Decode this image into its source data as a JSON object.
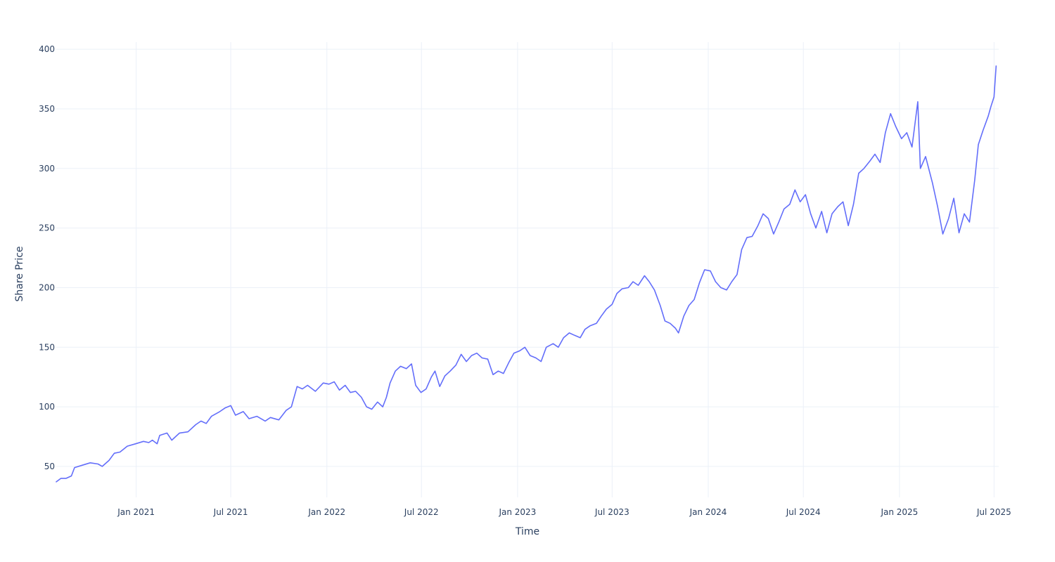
{
  "chart_data": {
    "type": "line",
    "title": "",
    "xlabel": "Time",
    "ylabel": "Share Price",
    "xlim": [
      "2020-08-01",
      "2025-07-10"
    ],
    "ylim": [
      24,
      406
    ],
    "grid": true,
    "legend": "none",
    "x_ticks": [
      {
        "date": "2021-01-01",
        "label": "Jan 2021"
      },
      {
        "date": "2021-07-01",
        "label": "Jul 2021"
      },
      {
        "date": "2022-01-01",
        "label": "Jan 2022"
      },
      {
        "date": "2022-07-01",
        "label": "Jul 2022"
      },
      {
        "date": "2023-01-01",
        "label": "Jan 2023"
      },
      {
        "date": "2023-07-01",
        "label": "Jul 2023"
      },
      {
        "date": "2024-01-01",
        "label": "Jan 2024"
      },
      {
        "date": "2024-07-01",
        "label": "Jul 2024"
      },
      {
        "date": "2025-01-01",
        "label": "Jan 2025"
      },
      {
        "date": "2025-07-01",
        "label": "Jul 2025"
      }
    ],
    "y_ticks": [
      {
        "value": 50,
        "label": "50"
      },
      {
        "value": 100,
        "label": "100"
      },
      {
        "value": 150,
        "label": "150"
      },
      {
        "value": 200,
        "label": "200"
      },
      {
        "value": 250,
        "label": "250"
      },
      {
        "value": 300,
        "label": "300"
      },
      {
        "value": 350,
        "label": "350"
      },
      {
        "value": 400,
        "label": "400"
      }
    ],
    "series": [
      {
        "color": "#636efa",
        "points": [
          [
            "2020-08-01",
            37
          ],
          [
            "2020-08-10",
            40
          ],
          [
            "2020-08-20",
            40
          ],
          [
            "2020-08-30",
            42
          ],
          [
            "2020-09-05",
            49
          ],
          [
            "2020-09-20",
            51
          ],
          [
            "2020-10-05",
            53
          ],
          [
            "2020-10-20",
            52
          ],
          [
            "2020-10-28",
            50
          ],
          [
            "2020-11-10",
            55
          ],
          [
            "2020-11-20",
            61
          ],
          [
            "2020-12-01",
            62
          ],
          [
            "2020-12-15",
            67
          ],
          [
            "2020-12-31",
            69
          ],
          [
            "2021-01-15",
            71
          ],
          [
            "2021-01-25",
            70
          ],
          [
            "2021-02-01",
            72
          ],
          [
            "2021-02-10",
            69
          ],
          [
            "2021-02-15",
            76
          ],
          [
            "2021-03-01",
            78
          ],
          [
            "2021-03-10",
            72
          ],
          [
            "2021-03-25",
            78
          ],
          [
            "2021-04-10",
            79
          ],
          [
            "2021-04-25",
            85
          ],
          [
            "2021-05-05",
            88
          ],
          [
            "2021-05-15",
            86
          ],
          [
            "2021-05-25",
            92
          ],
          [
            "2021-06-10",
            96
          ],
          [
            "2021-06-20",
            99
          ],
          [
            "2021-07-01",
            101
          ],
          [
            "2021-07-10",
            93
          ],
          [
            "2021-07-25",
            96
          ],
          [
            "2021-08-05",
            90
          ],
          [
            "2021-08-20",
            92
          ],
          [
            "2021-09-05",
            88
          ],
          [
            "2021-09-15",
            91
          ],
          [
            "2021-10-01",
            89
          ],
          [
            "2021-10-15",
            97
          ],
          [
            "2021-10-25",
            100
          ],
          [
            "2021-11-05",
            117
          ],
          [
            "2021-11-15",
            115
          ],
          [
            "2021-11-25",
            118
          ],
          [
            "2021-12-10",
            113
          ],
          [
            "2021-12-25",
            120
          ],
          [
            "2022-01-05",
            119
          ],
          [
            "2022-01-15",
            121
          ],
          [
            "2022-01-25",
            114
          ],
          [
            "2022-02-05",
            118
          ],
          [
            "2022-02-15",
            112
          ],
          [
            "2022-02-25",
            113
          ],
          [
            "2022-03-08",
            108
          ],
          [
            "2022-03-18",
            100
          ],
          [
            "2022-03-28",
            98
          ],
          [
            "2022-04-08",
            104
          ],
          [
            "2022-04-18",
            100
          ],
          [
            "2022-04-25",
            108
          ],
          [
            "2022-05-02",
            120
          ],
          [
            "2022-05-12",
            130
          ],
          [
            "2022-05-22",
            134
          ],
          [
            "2022-06-02",
            132
          ],
          [
            "2022-06-12",
            136
          ],
          [
            "2022-06-20",
            118
          ],
          [
            "2022-06-30",
            112
          ],
          [
            "2022-07-10",
            115
          ],
          [
            "2022-07-20",
            125
          ],
          [
            "2022-07-27",
            130
          ],
          [
            "2022-08-05",
            117
          ],
          [
            "2022-08-15",
            126
          ],
          [
            "2022-08-25",
            130
          ],
          [
            "2022-09-05",
            135
          ],
          [
            "2022-09-15",
            144
          ],
          [
            "2022-09-25",
            138
          ],
          [
            "2022-10-05",
            143
          ],
          [
            "2022-10-15",
            145
          ],
          [
            "2022-10-25",
            141
          ],
          [
            "2022-11-05",
            140
          ],
          [
            "2022-11-15",
            127
          ],
          [
            "2022-11-25",
            130
          ],
          [
            "2022-12-05",
            128
          ],
          [
            "2022-12-15",
            137
          ],
          [
            "2022-12-25",
            145
          ],
          [
            "2023-01-05",
            147
          ],
          [
            "2023-01-15",
            150
          ],
          [
            "2023-01-25",
            143
          ],
          [
            "2023-02-05",
            141
          ],
          [
            "2023-02-15",
            138
          ],
          [
            "2023-02-25",
            150
          ],
          [
            "2023-03-10",
            153
          ],
          [
            "2023-03-20",
            150
          ],
          [
            "2023-03-30",
            158
          ],
          [
            "2023-04-10",
            162
          ],
          [
            "2023-04-20",
            160
          ],
          [
            "2023-05-01",
            158
          ],
          [
            "2023-05-10",
            165
          ],
          [
            "2023-05-20",
            168
          ],
          [
            "2023-06-01",
            170
          ],
          [
            "2023-06-10",
            176
          ],
          [
            "2023-06-20",
            182
          ],
          [
            "2023-07-01",
            186
          ],
          [
            "2023-07-10",
            195
          ],
          [
            "2023-07-20",
            199
          ],
          [
            "2023-08-01",
            200
          ],
          [
            "2023-08-10",
            205
          ],
          [
            "2023-08-20",
            202
          ],
          [
            "2023-09-01",
            210
          ],
          [
            "2023-09-10",
            205
          ],
          [
            "2023-09-20",
            198
          ],
          [
            "2023-10-01",
            185
          ],
          [
            "2023-10-10",
            172
          ],
          [
            "2023-10-20",
            170
          ],
          [
            "2023-10-30",
            166
          ],
          [
            "2023-11-05",
            162
          ],
          [
            "2023-11-15",
            176
          ],
          [
            "2023-11-25",
            185
          ],
          [
            "2023-12-05",
            190
          ],
          [
            "2023-12-15",
            204
          ],
          [
            "2023-12-25",
            215
          ],
          [
            "2024-01-05",
            214
          ],
          [
            "2024-01-15",
            205
          ],
          [
            "2024-01-25",
            200
          ],
          [
            "2024-02-05",
            198
          ],
          [
            "2024-02-15",
            205
          ],
          [
            "2024-02-25",
            211
          ],
          [
            "2024-03-05",
            232
          ],
          [
            "2024-03-15",
            242
          ],
          [
            "2024-03-25",
            243
          ],
          [
            "2024-04-05",
            252
          ],
          [
            "2024-04-15",
            262
          ],
          [
            "2024-04-25",
            258
          ],
          [
            "2024-05-05",
            245
          ],
          [
            "2024-05-15",
            255
          ],
          [
            "2024-05-25",
            266
          ],
          [
            "2024-06-05",
            270
          ],
          [
            "2024-06-15",
            282
          ],
          [
            "2024-06-25",
            272
          ],
          [
            "2024-07-05",
            278
          ],
          [
            "2024-07-15",
            262
          ],
          [
            "2024-07-25",
            250
          ],
          [
            "2024-08-05",
            264
          ],
          [
            "2024-08-15",
            246
          ],
          [
            "2024-08-25",
            262
          ],
          [
            "2024-09-05",
            268
          ],
          [
            "2024-09-15",
            272
          ],
          [
            "2024-09-25",
            252
          ],
          [
            "2024-10-05",
            270
          ],
          [
            "2024-10-15",
            296
          ],
          [
            "2024-10-25",
            300
          ],
          [
            "2024-11-05",
            306
          ],
          [
            "2024-11-15",
            312
          ],
          [
            "2024-11-25",
            305
          ],
          [
            "2024-12-05",
            330
          ],
          [
            "2024-12-15",
            346
          ],
          [
            "2024-12-25",
            335
          ],
          [
            "2025-01-05",
            325
          ],
          [
            "2025-01-15",
            330
          ],
          [
            "2025-01-25",
            318
          ],
          [
            "2025-02-05",
            356
          ],
          [
            "2025-02-10",
            300
          ],
          [
            "2025-02-20",
            310
          ],
          [
            "2025-03-05",
            288
          ],
          [
            "2025-03-15",
            268
          ],
          [
            "2025-03-25",
            245
          ],
          [
            "2025-04-05",
            258
          ],
          [
            "2025-04-15",
            275
          ],
          [
            "2025-04-25",
            246
          ],
          [
            "2025-05-05",
            262
          ],
          [
            "2025-05-15",
            255
          ],
          [
            "2025-05-25",
            290
          ],
          [
            "2025-06-01",
            320
          ],
          [
            "2025-06-10",
            332
          ],
          [
            "2025-06-20",
            344
          ],
          [
            "2025-06-25",
            352
          ],
          [
            "2025-07-01",
            360
          ],
          [
            "2025-07-05",
            386
          ]
        ]
      }
    ]
  }
}
